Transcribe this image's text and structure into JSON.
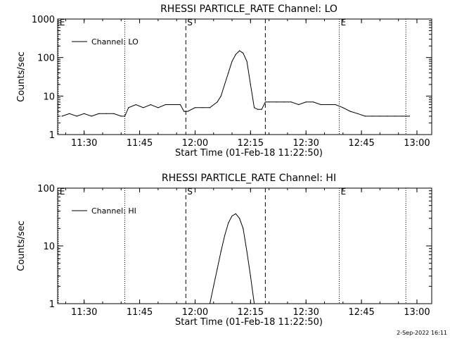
{
  "chart_data": [
    {
      "type": "line",
      "title": "RHESSI PARTICLE_RATE Channel: LO",
      "xlabel": "Start Time (01-Feb-18 11:22:50)",
      "ylabel": "Counts/sec",
      "yscale": "log",
      "ylim": [
        1,
        1000
      ],
      "xlim": [
        "11:22:50",
        "13:04:00"
      ],
      "x_ticks": [
        "11:30",
        "11:45",
        "12:00",
        "12:15",
        "12:30",
        "12:45",
        "13:00"
      ],
      "y_ticks": [
        "1",
        "10",
        "100",
        "1000"
      ],
      "grid": false,
      "legend": {
        "position": "top-left",
        "entries": [
          "Channel: LO"
        ]
      },
      "series": [
        {
          "name": "Channel: LO",
          "x": [
            "11:24",
            "11:26",
            "11:28",
            "11:30",
            "11:32",
            "11:34",
            "11:36",
            "11:38",
            "11:40",
            "11:41",
            "11:42",
            "11:44",
            "11:46",
            "11:48",
            "11:50",
            "11:52",
            "11:54",
            "11:56",
            "11:57",
            "11:58",
            "12:00",
            "12:02",
            "12:04",
            "12:06",
            "12:07",
            "12:08",
            "12:09",
            "12:10",
            "12:11",
            "12:12",
            "12:13",
            "12:14",
            "12:15",
            "12:16",
            "12:17",
            "12:18",
            "12:19",
            "12:20",
            "12:22",
            "12:24",
            "12:26",
            "12:28",
            "12:30",
            "12:32",
            "12:34",
            "12:36",
            "12:38",
            "12:40",
            "12:42",
            "12:44",
            "12:46",
            "12:48",
            "12:50",
            "12:52",
            "12:54",
            "12:56",
            "12:58"
          ],
          "values": [
            3,
            3.5,
            3,
            3.5,
            3,
            3.5,
            3.5,
            3.5,
            3,
            3,
            5,
            6,
            5,
            6,
            5,
            6,
            6,
            6,
            4,
            4,
            5,
            5,
            5,
            7,
            10,
            20,
            40,
            80,
            120,
            150,
            130,
            80,
            20,
            5,
            4.5,
            4.5,
            7,
            7,
            7,
            7,
            7,
            6,
            7,
            7,
            6,
            6,
            6,
            5,
            4,
            3.5,
            3,
            3,
            3,
            3,
            3,
            3,
            3
          ]
        }
      ],
      "annotations": [
        {
          "label": "E",
          "x": "11:23",
          "style": "dotted"
        },
        {
          "label": "",
          "x": "11:41",
          "style": "dotted"
        },
        {
          "label": "S",
          "x": "11:57:30",
          "style": "dashed"
        },
        {
          "label": "",
          "x": "12:19",
          "style": "dashed"
        },
        {
          "label": "E",
          "x": "12:39",
          "style": "dotted"
        },
        {
          "label": "",
          "x": "12:57",
          "style": "dotted"
        }
      ]
    },
    {
      "type": "line",
      "title": "RHESSI PARTICLE_RATE Channel: HI",
      "xlabel": "Start Time (01-Feb-18 11:22:50)",
      "ylabel": "Counts/sec",
      "yscale": "log",
      "ylim": [
        1,
        100
      ],
      "xlim": [
        "11:22:50",
        "13:04:00"
      ],
      "x_ticks": [
        "11:30",
        "11:45",
        "12:00",
        "12:15",
        "12:30",
        "12:45",
        "13:00"
      ],
      "y_ticks": [
        "1",
        "10",
        "100"
      ],
      "grid": false,
      "legend": {
        "position": "top-left",
        "entries": [
          "Channel: HI"
        ]
      },
      "series": [
        {
          "name": "Channel: HI",
          "x": [
            "12:04",
            "12:05",
            "12:06",
            "12:07",
            "12:08",
            "12:09",
            "12:10",
            "12:11",
            "12:12",
            "12:13",
            "12:14",
            "12:15",
            "12:16"
          ],
          "values": [
            1,
            2,
            4,
            8,
            15,
            25,
            33,
            36,
            30,
            20,
            8,
            3,
            1
          ]
        }
      ],
      "annotations": [
        {
          "label": "E",
          "x": "11:23",
          "style": "dotted"
        },
        {
          "label": "",
          "x": "11:41",
          "style": "dotted"
        },
        {
          "label": "S",
          "x": "11:57:30",
          "style": "dashed"
        },
        {
          "label": "",
          "x": "12:19",
          "style": "dashed"
        },
        {
          "label": "E",
          "x": "12:39",
          "style": "dotted"
        },
        {
          "label": "",
          "x": "12:57",
          "style": "dotted"
        }
      ]
    }
  ],
  "footer": {
    "stamp": "2-Sep-2022 16:11"
  }
}
